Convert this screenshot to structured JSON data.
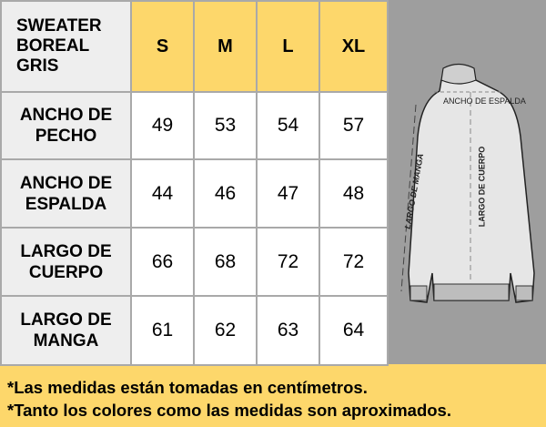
{
  "title": "SWEATER BOREAL GRIS",
  "sizes": [
    "S",
    "M",
    "L",
    "XL"
  ],
  "rows": [
    {
      "label": "ANCHO DE PECHO",
      "values": [
        "49",
        "53",
        "54",
        "57"
      ]
    },
    {
      "label": "ANCHO DE ESPALDA",
      "values": [
        "44",
        "46",
        "47",
        "48"
      ]
    },
    {
      "label": "LARGO DE CUERPO",
      "values": [
        "66",
        "68",
        "72",
        "72"
      ]
    },
    {
      "label": "LARGO DE MANGA",
      "values": [
        "61",
        "62",
        "63",
        "64"
      ]
    }
  ],
  "diagram": {
    "ancho_espalda": "ANCHO DE ESPALDA",
    "largo_cuerpo": "LARGO DE CUERPO",
    "largo_manga": "LARGO DE MANGA"
  },
  "notes": [
    "*Las medidas están tomadas en centímetros.",
    "*Tanto los colores como las medidas son aproximados."
  ],
  "colors": {
    "header": "#fdd76b",
    "label_bg": "#eeeeee",
    "picture_bg": "#9e9e9e"
  }
}
